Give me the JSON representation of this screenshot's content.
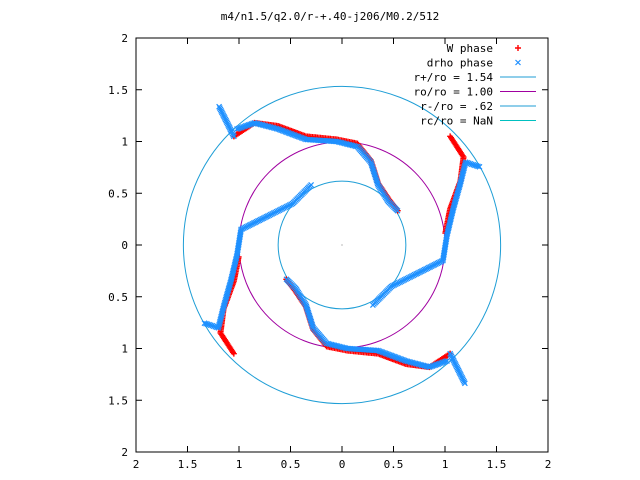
{
  "chart_data": {
    "type": "scatter",
    "title": "m4/n1.5/q2.0/r-+.40-j206/M0.2/512",
    "xlim": [
      -2,
      2
    ],
    "ylim": [
      -2,
      2
    ],
    "xticks": [
      -2,
      -1.5,
      -1,
      -0.5,
      0,
      0.5,
      1,
      1.5,
      2
    ],
    "yticks": [
      -2,
      -1.5,
      -1,
      -0.5,
      0,
      0.5,
      1,
      1.5,
      2
    ],
    "xtick_labels": [
      "2",
      "1.5",
      "1",
      "0.5",
      "0",
      "0.5",
      "1",
      "1.5",
      "2"
    ],
    "ytick_labels": [
      "2",
      "1.5",
      "1",
      "0.5",
      "0",
      "0.5",
      "1",
      "1.5",
      "2"
    ],
    "grid": false,
    "legend_position": "top-right",
    "series": [
      {
        "name": "W phase",
        "kind": "points",
        "marker": "+",
        "color": "#ff0000",
        "arms": [
          [
            [
              -1.05,
              1.05
            ],
            [
              -0.85,
              1.18
            ],
            [
              -0.62,
              1.15
            ],
            [
              -0.35,
              1.05
            ],
            [
              -0.05,
              1.02
            ],
            [
              0.15,
              0.98
            ],
            [
              0.28,
              0.82
            ],
            [
              0.35,
              0.6
            ],
            [
              0.45,
              0.45
            ],
            [
              0.55,
              0.32
            ]
          ],
          [
            [
              1.05,
              -1.05
            ],
            [
              0.85,
              -1.18
            ],
            [
              0.62,
              -1.15
            ],
            [
              0.35,
              -1.05
            ],
            [
              0.05,
              -1.02
            ],
            [
              -0.15,
              -0.98
            ],
            [
              -0.28,
              -0.82
            ],
            [
              -0.35,
              -0.6
            ],
            [
              -0.45,
              -0.45
            ],
            [
              -0.55,
              -0.32
            ]
          ],
          [
            [
              -1.05,
              -1.05
            ],
            [
              -1.18,
              -0.85
            ],
            [
              -1.15,
              -0.62
            ],
            [
              -1.05,
              -0.35
            ],
            [
              -1.0,
              -0.1
            ]
          ],
          [
            [
              1.05,
              1.05
            ],
            [
              1.18,
              0.85
            ],
            [
              1.15,
              0.62
            ],
            [
              1.05,
              0.35
            ],
            [
              1.0,
              0.1
            ]
          ]
        ]
      },
      {
        "name": "drho phase",
        "kind": "points",
        "marker": "x",
        "color": "#1e90ff",
        "arms": [
          [
            [
              -1.02,
              1.12
            ],
            [
              -0.85,
              1.18
            ],
            [
              -0.62,
              1.12
            ],
            [
              -0.35,
              1.02
            ],
            [
              -0.05,
              1.0
            ],
            [
              0.15,
              0.95
            ],
            [
              0.28,
              0.8
            ],
            [
              0.35,
              0.58
            ],
            [
              0.45,
              0.42
            ],
            [
              0.55,
              0.32
            ]
          ],
          [
            [
              -0.3,
              0.58
            ],
            [
              -0.48,
              0.4
            ],
            [
              -0.72,
              0.28
            ],
            [
              -0.98,
              0.15
            ],
            [
              -1.02,
              -0.1
            ],
            [
              -1.08,
              -0.35
            ],
            [
              -1.15,
              -0.6
            ],
            [
              -1.2,
              -0.8
            ],
            [
              -1.35,
              -0.75
            ]
          ],
          [
            [
              1.02,
              -1.12
            ],
            [
              0.85,
              -1.18
            ],
            [
              0.62,
              -1.12
            ],
            [
              0.35,
              -1.02
            ],
            [
              0.05,
              -1.0
            ],
            [
              -0.15,
              -0.95
            ],
            [
              -0.28,
              -0.8
            ],
            [
              -0.35,
              -0.58
            ],
            [
              -0.45,
              -0.42
            ],
            [
              -0.55,
              -0.32
            ]
          ],
          [
            [
              0.3,
              -0.58
            ],
            [
              0.48,
              -0.4
            ],
            [
              0.72,
              -0.28
            ],
            [
              0.98,
              -0.15
            ],
            [
              1.02,
              0.1
            ],
            [
              1.08,
              0.35
            ],
            [
              1.15,
              0.6
            ],
            [
              1.2,
              0.8
            ],
            [
              1.35,
              0.75
            ]
          ],
          [
            [
              -1.05,
              1.05
            ],
            [
              -1.2,
              1.35
            ]
          ],
          [
            [
              1.05,
              -1.05
            ],
            [
              1.2,
              -1.35
            ]
          ]
        ]
      },
      {
        "name": "r+/ro = 1.54",
        "kind": "circle",
        "radius": 1.54,
        "color": "#1f9ed6"
      },
      {
        "name": "ro/ro = 1.00",
        "kind": "circle",
        "radius": 1.0,
        "color": "#a000a0"
      },
      {
        "name": "r-/ro = .62",
        "kind": "circle",
        "radius": 0.62,
        "color": "#1f9ed6"
      },
      {
        "name": "rc/ro = NaN",
        "kind": "circle",
        "radius": null,
        "color": "#00c0c0"
      }
    ]
  }
}
